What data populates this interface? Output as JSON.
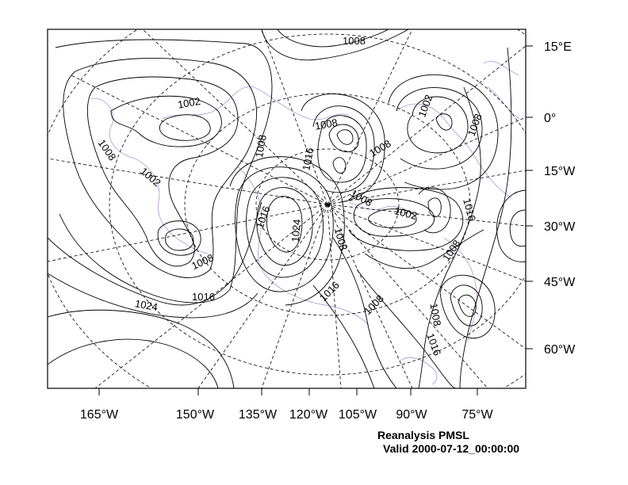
{
  "map": {
    "caption_title": "Reanalysis PMSL",
    "caption_valid": "Valid 2000-07-12_00:00:00",
    "bottom_labels": [
      "165°W",
      "150°W",
      "135°W",
      "120°W",
      "105°W",
      "90°W",
      "75°W"
    ],
    "right_labels": [
      "15°E",
      "0°",
      "15°W",
      "30°W",
      "45°W",
      "60°W"
    ],
    "contour_labels": [
      "1008",
      "1002",
      "1002",
      "1008",
      "1008",
      "1002",
      "1008",
      "1008",
      "1016",
      "1008",
      "1016",
      "1008",
      "1016",
      "1024",
      "1002",
      "1008",
      "1008",
      "1008",
      "1016",
      "1024",
      "1016",
      "1008",
      "1008",
      "1016"
    ],
    "colors": {
      "contour": "#000000",
      "coastline": "#b9a0d8",
      "graticule": "#000000",
      "frame": "#000000"
    }
  }
}
